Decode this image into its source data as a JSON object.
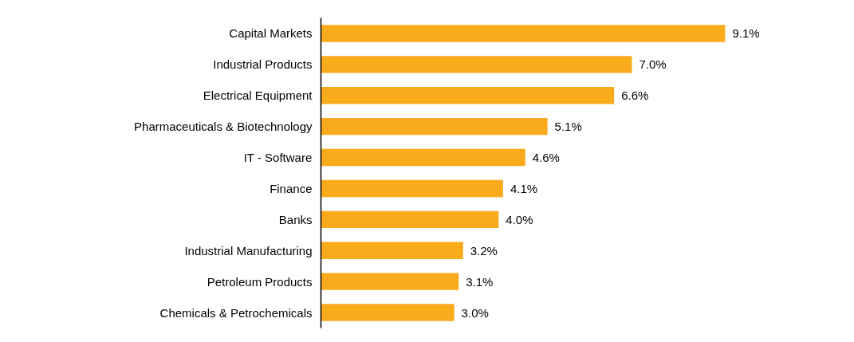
{
  "chart_data": {
    "type": "bar",
    "orientation": "horizontal",
    "categories": [
      "Capital Markets",
      "Industrial Products",
      "Electrical Equipment",
      "Pharmaceuticals & Biotechnology",
      "IT - Software",
      "Finance",
      "Banks",
      "Industrial Manufacturing",
      "Petroleum Products",
      "Chemicals & Petrochemicals"
    ],
    "values": [
      9.1,
      7.0,
      6.6,
      5.1,
      4.6,
      4.1,
      4.0,
      3.2,
      3.1,
      3.0
    ],
    "value_labels": [
      "9.1%",
      "7.0%",
      "6.6%",
      "5.1%",
      "4.6%",
      "4.1%",
      "4.0%",
      "3.2%",
      "3.1%",
      "3.0%"
    ],
    "color": "#f9ab1c"
  }
}
